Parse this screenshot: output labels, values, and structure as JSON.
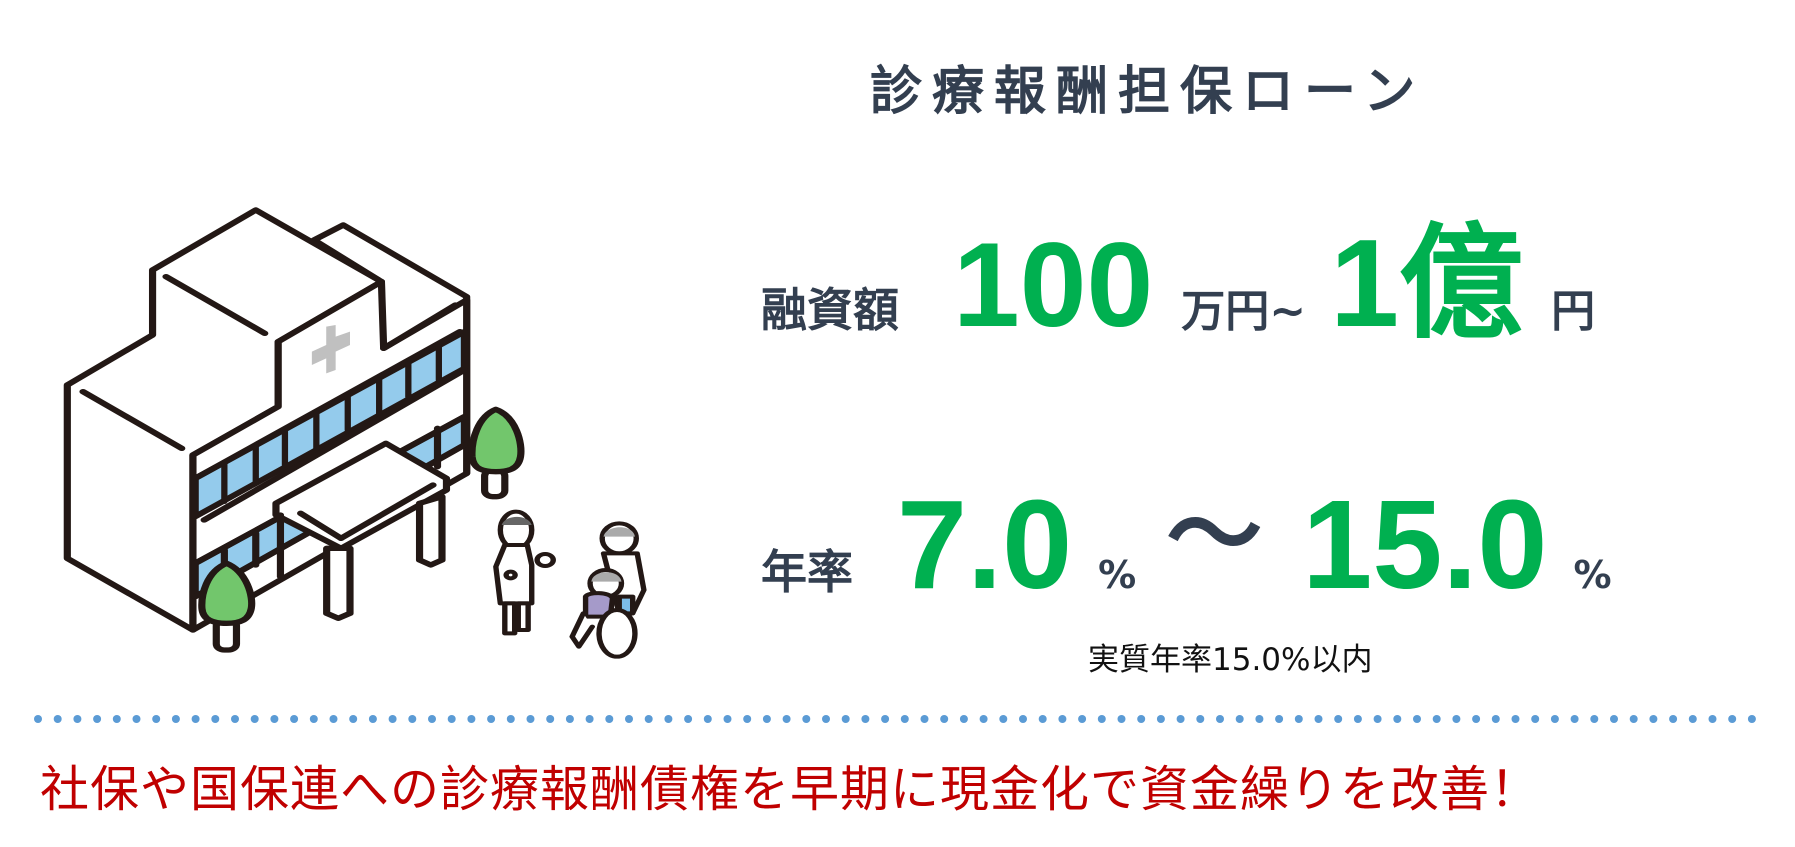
{
  "title": "診療報酬担保ローン",
  "loan_amount": {
    "label": "融資額",
    "min_value": "100",
    "min_unit": "万円~",
    "max_value": "1億",
    "max_unit": "円"
  },
  "interest_rate": {
    "label": "年率",
    "min_value": "7.0",
    "min_unit": "%",
    "separator": "～",
    "max_value": "15.0",
    "max_unit": "%",
    "note": "実質年率15.0%以内"
  },
  "tagline": "社保や国保連への診療報酬債権を早期に現金化で資金繰りを改善！",
  "colors": {
    "heading": "#333f50",
    "accent_green": "#00b050",
    "tagline_red": "#c00000",
    "divider_blue": "#5b9bd5",
    "window_blue": "#94cbec",
    "tree_green": "#72c66c"
  },
  "illustration": {
    "icons": [
      "hospital-building-icon",
      "medical-cross-icon",
      "tree-icon",
      "nurse-icon",
      "wheelchair-patient-icon"
    ]
  }
}
